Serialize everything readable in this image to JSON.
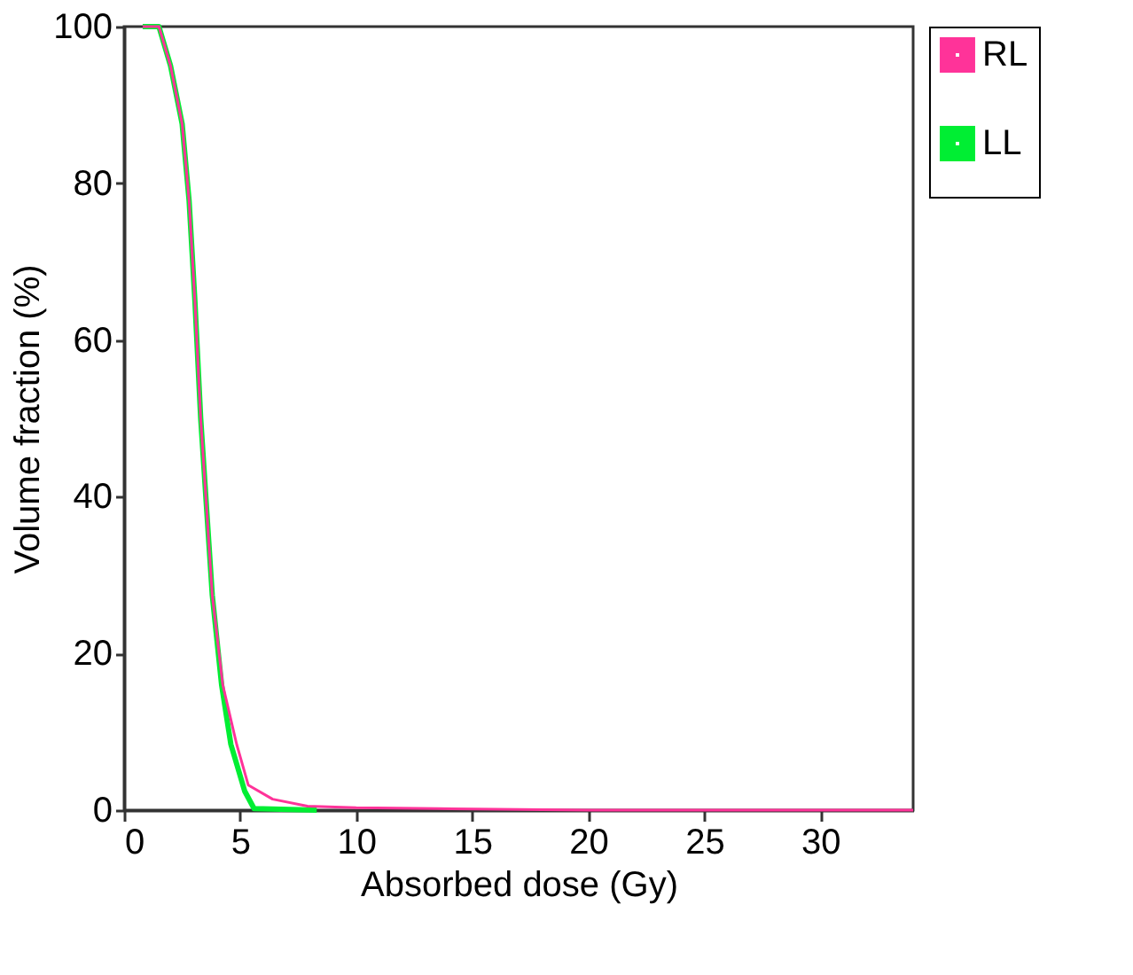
{
  "chart_data": {
    "type": "line",
    "xlabel": "Absorbed dose (Gy)",
    "ylabel": "Volume fraction (%)",
    "xlim": [
      0,
      34
    ],
    "xticks": [
      0,
      5,
      10,
      15,
      20,
      25,
      30
    ],
    "ylim": [
      0,
      100
    ],
    "yticks": [
      0,
      20,
      40,
      60,
      80,
      100
    ],
    "grid": false,
    "legend": "top right",
    "marker": "none",
    "line_style": "solid",
    "series": [
      {
        "name": "RL",
        "color": "#ff3399",
        "x": [
          0.8,
          1.5,
          2.0,
          2.5,
          2.8,
          3.05,
          3.3,
          3.55,
          3.8,
          4.25,
          4.85,
          5.35,
          6.4,
          7.9,
          10,
          13.5,
          20,
          34
        ],
        "values": [
          100,
          100,
          95,
          87.6,
          77.8,
          65,
          50,
          38.7,
          27.4,
          16,
          8.4,
          3.2,
          1.4,
          0.5,
          0.3,
          0.2,
          0,
          0
        ]
      },
      {
        "name": "LL",
        "color": "#00ee33",
        "x": [
          0.8,
          1.5,
          2.0,
          2.5,
          2.8,
          3.05,
          3.3,
          3.55,
          3.8,
          4.2,
          4.6,
          5.2,
          5.6,
          8.3
        ],
        "values": [
          100,
          100,
          95,
          87.6,
          77.8,
          65,
          50,
          38.7,
          27.4,
          16,
          8.4,
          2.4,
          0.2,
          0
        ]
      }
    ]
  }
}
